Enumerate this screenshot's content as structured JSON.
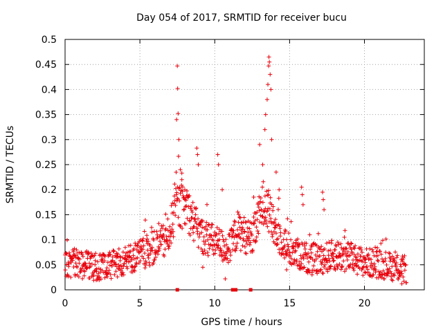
{
  "chart_data": {
    "type": "scatter",
    "title": "Day 054 of 2017, SRMTID for receiver bucu",
    "xlabel": "GPS time / hours",
    "ylabel": "SRMTID / TECUs",
    "xlim": [
      0,
      24
    ],
    "ylim": [
      0,
      0.5
    ],
    "xticks": [
      0,
      5,
      10,
      15,
      20
    ],
    "xtick_labels": [
      "0",
      "5",
      "10",
      "15",
      "20"
    ],
    "yticks": [
      0,
      0.05,
      0.1,
      0.15,
      0.2,
      0.25,
      0.3,
      0.35,
      0.4,
      0.45,
      0.5
    ],
    "ytick_labels": [
      "0",
      "0.05",
      "0.1",
      "0.15",
      "0.2",
      "0.25",
      "0.3",
      "0.35",
      "0.4",
      "0.45",
      "0.5"
    ],
    "grid": true,
    "marker": "+",
    "marker_color": "#e8000b",
    "series": [
      {
        "name": "SRMTID",
        "baseline": [
          [
            0,
            0.055
          ],
          [
            1,
            0.052
          ],
          [
            2,
            0.045
          ],
          [
            3,
            0.05
          ],
          [
            4,
            0.058
          ],
          [
            5,
            0.07
          ],
          [
            6,
            0.085
          ],
          [
            6.8,
            0.1
          ],
          [
            7.5,
            0.17
          ],
          [
            8.2,
            0.16
          ],
          [
            9,
            0.11
          ],
          [
            10,
            0.095
          ],
          [
            11,
            0.08
          ],
          [
            11.5,
            0.12
          ],
          [
            12.5,
            0.1
          ],
          [
            13.3,
            0.18
          ],
          [
            14,
            0.12
          ],
          [
            15,
            0.08
          ],
          [
            16,
            0.065
          ],
          [
            17,
            0.06
          ],
          [
            18,
            0.07
          ],
          [
            19,
            0.065
          ],
          [
            20,
            0.055
          ],
          [
            21,
            0.052
          ],
          [
            22,
            0.045
          ],
          [
            22.8,
            0.04
          ]
        ],
        "sample_step_hours": 0.02,
        "scatter_amplitude": 0.022,
        "peaks": [
          [
            7.45,
            0.34
          ],
          [
            7.5,
            0.447
          ],
          [
            7.52,
            0.402
          ],
          [
            7.55,
            0.352
          ],
          [
            7.6,
            0.3
          ],
          [
            7.7,
            0.24
          ],
          [
            7.8,
            0.22
          ],
          [
            8,
            0.2
          ],
          [
            8.8,
            0.283
          ],
          [
            8.85,
            0.27
          ],
          [
            8.9,
            0.25
          ],
          [
            10.2,
            0.27
          ],
          [
            10.25,
            0.25
          ],
          [
            10.5,
            0.2
          ],
          [
            12.6,
            0.185
          ],
          [
            13,
            0.29
          ],
          [
            13.2,
            0.25
          ],
          [
            13.35,
            0.32
          ],
          [
            13.4,
            0.35
          ],
          [
            13.5,
            0.38
          ],
          [
            13.55,
            0.41
          ],
          [
            13.6,
            0.447
          ],
          [
            13.62,
            0.465
          ],
          [
            13.65,
            0.455
          ],
          [
            13.7,
            0.43
          ],
          [
            13.75,
            0.4
          ],
          [
            13.8,
            0.3
          ],
          [
            14.1,
            0.235
          ],
          [
            14.3,
            0.2
          ],
          [
            15.8,
            0.205
          ],
          [
            15.85,
            0.19
          ],
          [
            15.9,
            0.17
          ],
          [
            17.2,
            0.195
          ],
          [
            17.25,
            0.18
          ],
          [
            17.3,
            0.16
          ]
        ],
        "lows": [
          [
            10.7,
            0.022
          ],
          [
            16.5,
            0.03
          ],
          [
            22.5,
            0.012
          ],
          [
            9.2,
            0.045
          ],
          [
            14.8,
            0.04
          ]
        ]
      },
      {
        "name": "zero markers",
        "points": [
          [
            7.5,
            0
          ],
          [
            11.2,
            0
          ],
          [
            11.3,
            0
          ],
          [
            11.4,
            0
          ],
          [
            12.4,
            0
          ]
        ]
      }
    ]
  }
}
